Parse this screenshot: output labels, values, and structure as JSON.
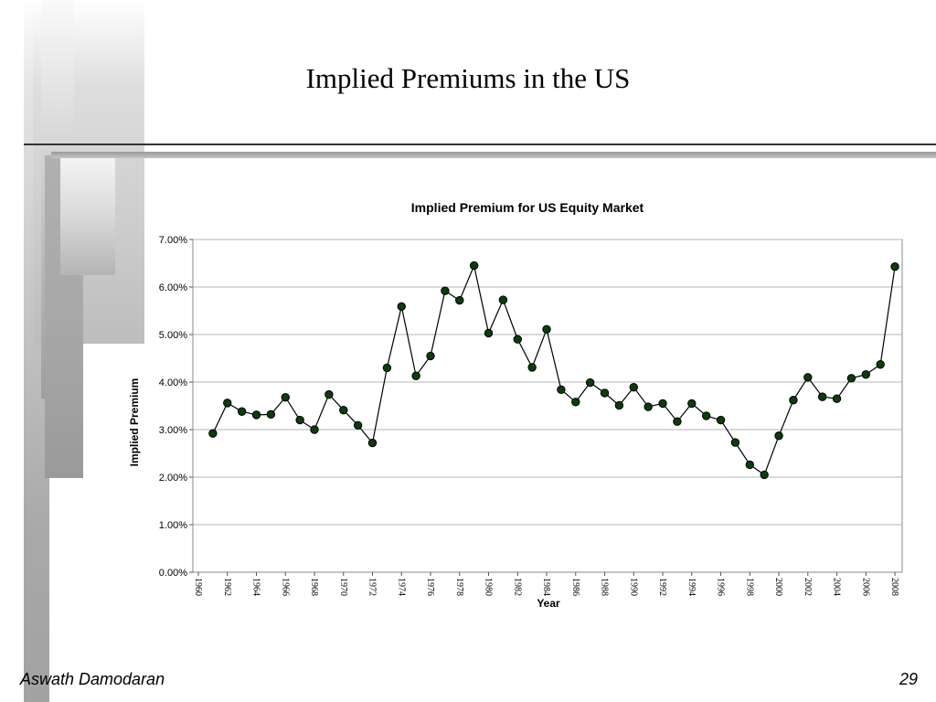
{
  "slide": {
    "title": "Implied Premiums in the US",
    "footer_author": "Aswath Damodaran",
    "page_number": "29"
  },
  "colors": {
    "marker_fill": "#0d3b0d",
    "line": "#000000",
    "grid": "#b4b4b4"
  },
  "chart_data": {
    "type": "line",
    "title": "Implied Premium for US Equity Market",
    "xlabel": "Year",
    "ylabel": "Implied Premium",
    "ylim": [
      0,
      7
    ],
    "y_tick_labels": [
      "0.00%",
      "1.00%",
      "2.00%",
      "3.00%",
      "4.00%",
      "5.00%",
      "6.00%",
      "7.00%"
    ],
    "x_tick_labels": [
      "1960",
      "1962",
      "1964",
      "1966",
      "1968",
      "1970",
      "1972",
      "1974",
      "1976",
      "1978",
      "1980",
      "1982",
      "1984",
      "1986",
      "1988",
      "1990",
      "1992",
      "1994",
      "1996",
      "1998",
      "2000",
      "2002",
      "2004",
      "2006",
      "2008"
    ],
    "grid": "horizontal",
    "markers": true,
    "x": [
      1961,
      1962,
      1963,
      1964,
      1965,
      1966,
      1967,
      1968,
      1969,
      1970,
      1971,
      1972,
      1973,
      1974,
      1975,
      1976,
      1977,
      1978,
      1979,
      1980,
      1981,
      1982,
      1983,
      1984,
      1985,
      1986,
      1987,
      1988,
      1989,
      1990,
      1991,
      1992,
      1993,
      1994,
      1995,
      1996,
      1997,
      1998,
      1999,
      2000,
      2001,
      2002,
      2003,
      2004,
      2005,
      2006,
      2007,
      2008
    ],
    "series": [
      {
        "values": [
          2.92,
          3.56,
          3.38,
          3.31,
          3.32,
          3.68,
          3.2,
          3.0,
          3.74,
          3.41,
          3.09,
          2.72,
          4.3,
          5.59,
          4.13,
          4.55,
          5.92,
          5.72,
          6.45,
          5.03,
          5.73,
          4.9,
          4.31,
          5.11,
          3.84,
          3.58,
          3.99,
          3.77,
          3.51,
          3.89,
          3.48,
          3.55,
          3.17,
          3.55,
          3.29,
          3.2,
          2.73,
          2.26,
          2.05,
          2.87,
          3.62,
          4.1,
          3.69,
          3.65,
          4.08,
          4.16,
          4.37,
          6.43
        ]
      }
    ]
  }
}
